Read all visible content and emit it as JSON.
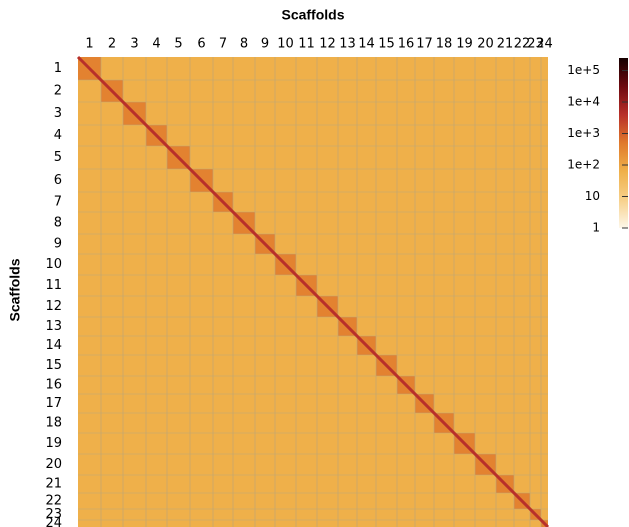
{
  "chart_data": {
    "type": "heatmap",
    "x_label": "Scaffolds",
    "y_label": "Scaffolds",
    "categories": [
      "1",
      "2",
      "3",
      "4",
      "5",
      "6",
      "7",
      "8",
      "9",
      "10",
      "11",
      "12",
      "13",
      "14",
      "15",
      "16",
      "17",
      "18",
      "19",
      "20",
      "21",
      "22",
      "23",
      "24"
    ],
    "lengths": [
      23,
      22,
      23,
      21,
      23,
      23,
      20,
      22,
      20,
      21,
      21,
      21,
      19,
      19,
      21,
      18,
      19,
      20,
      21,
      21,
      18,
      16,
      11,
      7
    ],
    "colors": [
      "#fdf7ea",
      "#f7d08a",
      "#efb04a",
      "#e07a2c",
      "#b8302a",
      "#6e0a10",
      "#150000"
    ],
    "log_scale": true,
    "clim": [
      1,
      250000
    ],
    "cticks": [
      1,
      10,
      {
        "value": 100,
        "label": "1e+2"
      },
      {
        "value": 1000,
        "label": "1e+3"
      },
      {
        "value": 10000,
        "label": "1e+4"
      },
      {
        "value": 100000,
        "label": "1e+5"
      }
    ]
  }
}
